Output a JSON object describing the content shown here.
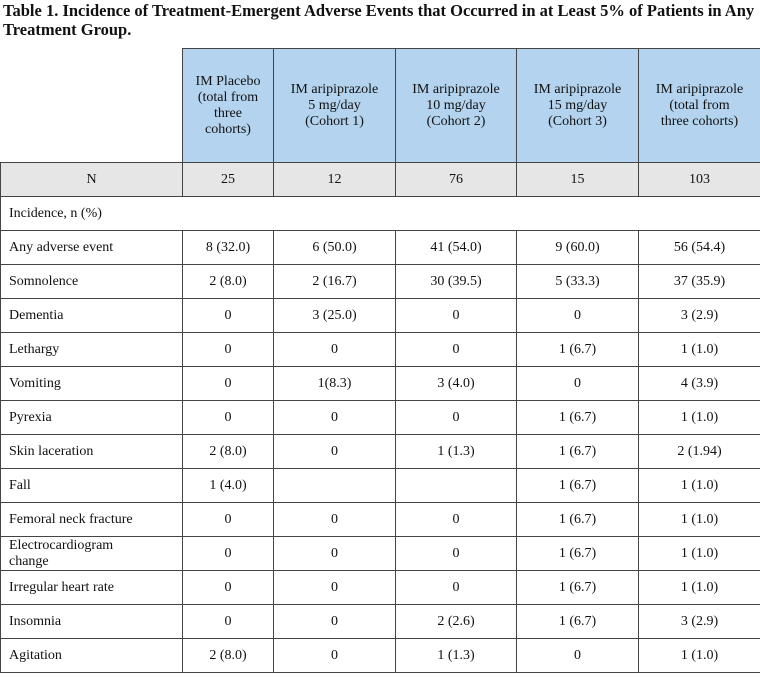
{
  "title": "Table 1.  Incidence of Treatment-Emergent Adverse Events that Occurred in at Least 5% of Patients in Any Treatment Group.",
  "table": {
    "columns": [
      "IM Placebo\n(total from\nthree\ncohorts)",
      "IM aripiprazole\n5 mg/day\n(Cohort 1)",
      "IM aripiprazole\n10 mg/day\n(Cohort 2)",
      "IM aripiprazole\n15 mg/day\n(Cohort 3)",
      "IM aripiprazole\n(total from\nthree cohorts)"
    ],
    "n_row": {
      "label": "N",
      "values": [
        "25",
        "12",
        "76",
        "15",
        "103"
      ]
    },
    "section_label": "Incidence, n (%)",
    "rows": [
      {
        "label": "Any adverse event",
        "values": [
          "8 (32.0)",
          "6 (50.0)",
          "41 (54.0)",
          "9 (60.0)",
          "56 (54.4)"
        ]
      },
      {
        "label": "Somnolence",
        "values": [
          "2 (8.0)",
          "2 (16.7)",
          "30 (39.5)",
          "5 (33.3)",
          "37 (35.9)"
        ]
      },
      {
        "label": "Dementia",
        "values": [
          "0",
          "3 (25.0)",
          "0",
          "0",
          "3 (2.9)"
        ]
      },
      {
        "label": "Lethargy",
        "values": [
          "0",
          "0",
          "0",
          "1 (6.7)",
          "1 (1.0)"
        ]
      },
      {
        "label": "Vomiting",
        "values": [
          "0",
          "1(8.3)",
          "3 (4.0)",
          "0",
          "4 (3.9)"
        ]
      },
      {
        "label": "Pyrexia",
        "values": [
          "0",
          "0",
          "0",
          "1 (6.7)",
          "1 (1.0)"
        ]
      },
      {
        "label": "Skin laceration",
        "values": [
          "2 (8.0)",
          "0",
          "1 (1.3)",
          "1 (6.7)",
          "2 (1.94)"
        ]
      },
      {
        "label": "Fall",
        "values": [
          "1 (4.0)",
          null,
          null,
          "1 (6.7)",
          "1 (1.0)"
        ]
      },
      {
        "label": "Femoral neck fracture",
        "values": [
          "0",
          "0",
          "0",
          "1 (6.7)",
          "1 (1.0)"
        ]
      },
      {
        "label": "Electrocardiogram\nchange",
        "values": [
          "0",
          "0",
          "0",
          "1 (6.7)",
          "1 (1.0)"
        ]
      },
      {
        "label": "Irregular heart rate",
        "values": [
          "0",
          "0",
          "0",
          "1 (6.7)",
          "1 (1.0)"
        ]
      },
      {
        "label": "Insomnia",
        "values": [
          "0",
          "0",
          "2 (2.6)",
          "1 (6.7)",
          "3 (2.9)"
        ]
      },
      {
        "label": "Agitation",
        "values": [
          "2 (8.0)",
          "0",
          "1 (1.3)",
          "0",
          "1 (1.0)"
        ]
      }
    ]
  }
}
